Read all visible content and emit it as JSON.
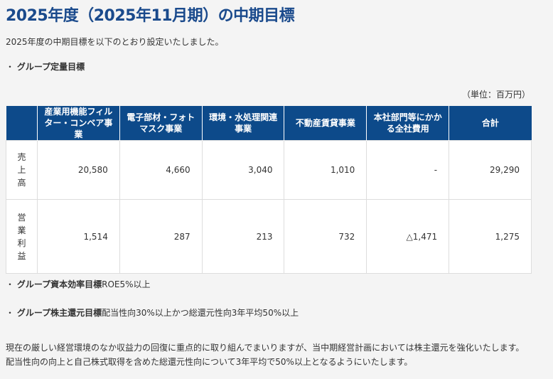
{
  "page_title": "2025年度（2025年11月期）の中期目標",
  "intro": "2025年度の中期目標を以下のとおり設定いたしました。",
  "section1": {
    "bullet": "・",
    "label": "グループ定量目標"
  },
  "unit": "（単位：百万円）",
  "table": {
    "headers": [
      "",
      "産業用機能フィルター・コンベア事業",
      "電子部材・フォトマスク事業",
      "環境・水処理関連事業",
      "不動産賃貸事業",
      "本社部門等にかかる全社費用",
      "合計"
    ],
    "rows": [
      {
        "label": [
          "売",
          "上",
          "高"
        ],
        "values": [
          "20,580",
          "4,660",
          "3,040",
          "1,010",
          "-",
          "29,290"
        ]
      },
      {
        "label": [
          "営",
          "業",
          "利",
          "益"
        ],
        "values": [
          "1,514",
          "287",
          "213",
          "732",
          "△1,471",
          "1,275"
        ]
      }
    ]
  },
  "section2": {
    "bullet": "・",
    "label": "グループ資本効率目標",
    "value": "ROE5%以上"
  },
  "section3": {
    "bullet": "・",
    "label": "グループ株主還元目標",
    "value": "配当性向30%以上かつ総還元性向3年平均50%以上"
  },
  "footer": "現在の厳しい経営環境のなか収益力の回復に重点的に取り組んでまいりますが、当中期経営計画においては株主還元を強化いたします。配当性向の向上と自己株式取得を含めた総還元性向について3年平均で50%以上となるようにいたします。"
}
